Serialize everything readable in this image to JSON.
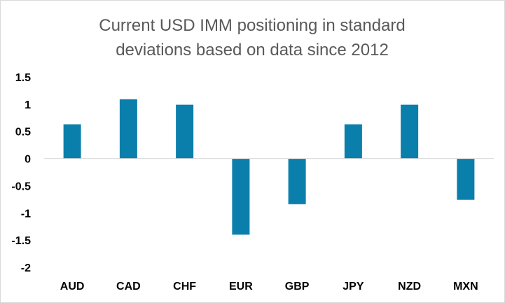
{
  "chart_data": {
    "type": "bar",
    "title_lines": [
      "Current USD IMM positioning in standard",
      "deviations based on data since 2012"
    ],
    "categories": [
      "AUD",
      "CAD",
      "CHF",
      "EUR",
      "GBP",
      "JPY",
      "NZD",
      "MXN"
    ],
    "values": [
      0.63,
      1.09,
      0.99,
      -1.4,
      -0.84,
      0.63,
      0.99,
      -0.76
    ],
    "ylim": [
      -2,
      1.5
    ],
    "yticks": [
      "1.5",
      "1",
      "0.5",
      "0",
      "-0.5",
      "-1",
      "-1.5",
      "-2"
    ],
    "bar_color": "#0b7fab",
    "grid": false,
    "legend": "none"
  }
}
